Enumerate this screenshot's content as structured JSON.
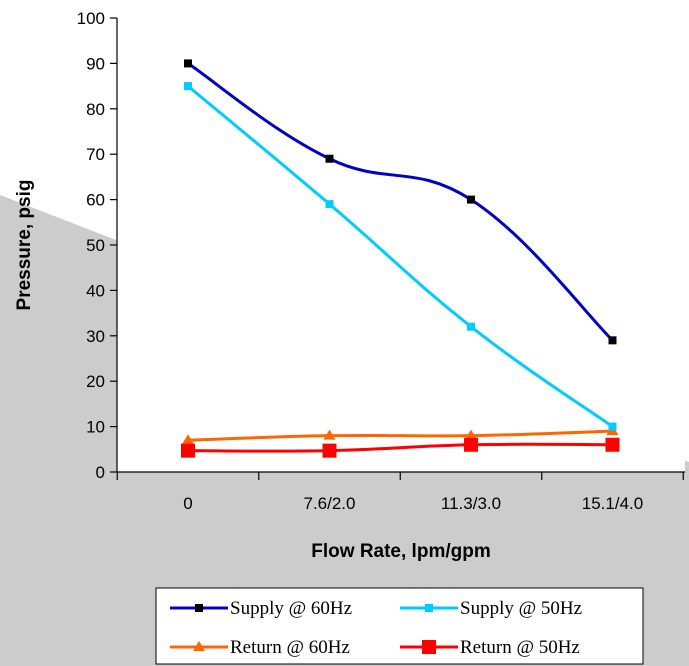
{
  "chart_data": {
    "type": "line",
    "title": "",
    "xlabel": "Flow Rate, lpm/gpm",
    "ylabel": "Pressure, psig",
    "categories": [
      "0",
      "7.6/2.0",
      "11.3/3.0",
      "15.1/4.0"
    ],
    "ylim": [
      0,
      100
    ],
    "yticks": [
      "0",
      "10",
      "20",
      "30",
      "40",
      "50",
      "60",
      "70",
      "80",
      "90",
      "100"
    ],
    "grid": "none",
    "legend_position": "bottom",
    "series": [
      {
        "name": "Supply @ 60Hz",
        "values": [
          90,
          69,
          60,
          29
        ],
        "color": "#0000CC",
        "marker": "square"
      },
      {
        "name": "Supply @ 50Hz",
        "values": [
          85,
          59,
          32,
          10
        ],
        "color": "#00CCFF",
        "marker": "square"
      },
      {
        "name": "Return @ 60Hz",
        "values": [
          7,
          8,
          8,
          9
        ],
        "color": "#FF6600",
        "marker": "triangle"
      },
      {
        "name": "Return @ 50Hz",
        "values": [
          4.7,
          4.7,
          6,
          6
        ],
        "color": "#FF0000",
        "marker": "square-large"
      }
    ]
  }
}
